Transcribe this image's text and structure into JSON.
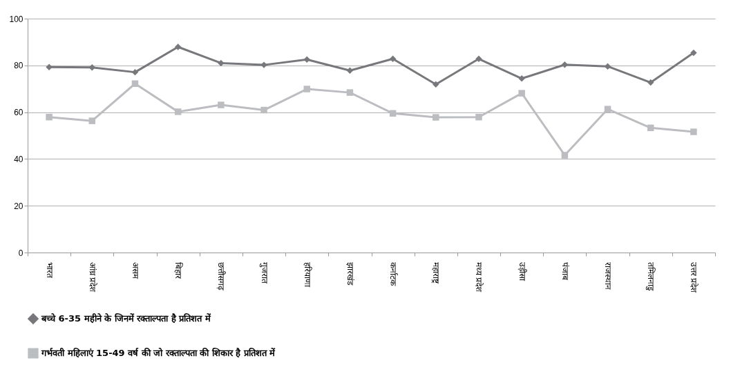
{
  "chart_data": {
    "type": "line",
    "categories": [
      "भारत",
      "आंध्र प्रदेश",
      "असम",
      "बिहार",
      "छत्तीसगढ़",
      "गुजरात",
      "हरियाणा",
      "झारखंड",
      "कर्नाटक",
      "महाराष्ट्र",
      "मध्य प्रदेश",
      "उड़ीसा",
      "पंजाब",
      "राजस्थान",
      "तमिलनाडु",
      "उत्तर प्रदेश"
    ],
    "series": [
      {
        "name": "बच्चे 6-35 महीने के जिनमें रक्ताल्पता है प्रतिशत में",
        "color": "#77787b",
        "marker": "diamond",
        "values": [
          79.3,
          79.1,
          77.1,
          87.9,
          81.0,
          80.2,
          82.5,
          77.8,
          82.8,
          71.9,
          82.8,
          74.4,
          80.3,
          79.6,
          72.7,
          85.4
        ]
      },
      {
        "name": "गर्भवती महिलाएं 15-49 वर्ष की जो रक्ताल्पता की शिकार है प्रतिशत में",
        "color": "#bcbdc0",
        "marker": "square",
        "values": [
          57.9,
          56.3,
          72.2,
          60.2,
          63.1,
          60.9,
          69.9,
          68.4,
          59.5,
          57.8,
          57.9,
          68.1,
          41.6,
          61.3,
          53.3,
          51.6
        ]
      }
    ],
    "ylim": [
      0,
      100
    ],
    "yticks": [
      0,
      20,
      40,
      60,
      80,
      100
    ],
    "grid": "y",
    "legend": "bottom left"
  }
}
